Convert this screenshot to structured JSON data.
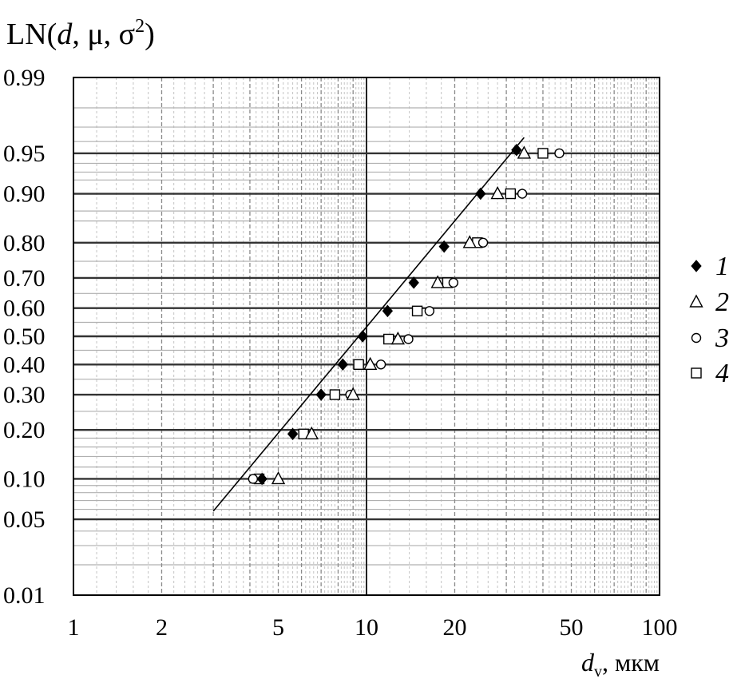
{
  "chart_data": {
    "type": "scatter",
    "title": "",
    "ylabel": {
      "prefix": "LN(",
      "var": "d",
      "mid": ", μ, σ",
      "sup": "2",
      "suffix": ")"
    },
    "xlabel": {
      "var": "d",
      "sub": "v",
      "suffix": ", мкм"
    },
    "x_scale": "log",
    "y_scale": "probability",
    "xlim": [
      1,
      100
    ],
    "ylim": [
      0.01,
      0.99
    ],
    "x_ticks": [
      {
        "value": 1,
        "label": "1"
      },
      {
        "value": 2,
        "label": "2"
      },
      {
        "value": 5,
        "label": "5"
      },
      {
        "value": 10,
        "label": "10"
      },
      {
        "value": 20,
        "label": "20"
      },
      {
        "value": 50,
        "label": "50"
      },
      {
        "value": 100,
        "label": "100"
      }
    ],
    "y_ticks": [
      {
        "value": 0.01,
        "label": "0.01"
      },
      {
        "value": 0.05,
        "label": "0.05"
      },
      {
        "value": 0.1,
        "label": "0.10"
      },
      {
        "value": 0.2,
        "label": "0.20"
      },
      {
        "value": 0.3,
        "label": "0.30"
      },
      {
        "value": 0.4,
        "label": "0.40"
      },
      {
        "value": 0.5,
        "label": "0.50"
      },
      {
        "value": 0.6,
        "label": "0.60"
      },
      {
        "value": 0.7,
        "label": "0.70"
      },
      {
        "value": 0.8,
        "label": "0.80"
      },
      {
        "value": 0.9,
        "label": "0.90"
      },
      {
        "value": 0.95,
        "label": "0.95"
      },
      {
        "value": 0.99,
        "label": "0.99"
      }
    ],
    "grid": true,
    "legend_position": "right",
    "series": [
      {
        "name": "1",
        "marker": "diamond-filled",
        "points": [
          {
            "x": 4.4,
            "y": 0.1
          },
          {
            "x": 5.6,
            "y": 0.19
          },
          {
            "x": 7.0,
            "y": 0.3
          },
          {
            "x": 8.3,
            "y": 0.4
          },
          {
            "x": 9.7,
            "y": 0.5
          },
          {
            "x": 11.8,
            "y": 0.59
          },
          {
            "x": 14.5,
            "y": 0.685
          },
          {
            "x": 18.4,
            "y": 0.79
          },
          {
            "x": 24.5,
            "y": 0.9
          },
          {
            "x": 32.5,
            "y": 0.953
          }
        ]
      },
      {
        "name": "2",
        "marker": "triangle-open",
        "points": [
          {
            "x": 5.0,
            "y": 0.1
          },
          {
            "x": 6.5,
            "y": 0.19
          },
          {
            "x": 9.0,
            "y": 0.3
          },
          {
            "x": 10.3,
            "y": 0.4
          },
          {
            "x": 12.8,
            "y": 0.49
          },
          {
            "x": 17.5,
            "y": 0.685
          },
          {
            "x": 22.5,
            "y": 0.8
          },
          {
            "x": 28.0,
            "y": 0.9
          },
          {
            "x": 34.5,
            "y": 0.95
          }
        ]
      },
      {
        "name": "3",
        "marker": "circle-open",
        "points": [
          {
            "x": 4.1,
            "y": 0.1
          },
          {
            "x": 8.8,
            "y": 0.3
          },
          {
            "x": 11.2,
            "y": 0.4
          },
          {
            "x": 13.9,
            "y": 0.49
          },
          {
            "x": 16.4,
            "y": 0.59
          },
          {
            "x": 19.8,
            "y": 0.685
          },
          {
            "x": 25.0,
            "y": 0.8
          },
          {
            "x": 34.0,
            "y": 0.9
          },
          {
            "x": 45.5,
            "y": 0.95
          }
        ]
      },
      {
        "name": "4",
        "marker": "square-open",
        "points": [
          {
            "x": 4.3,
            "y": 0.1
          },
          {
            "x": 6.1,
            "y": 0.19
          },
          {
            "x": 7.8,
            "y": 0.3
          },
          {
            "x": 9.4,
            "y": 0.4
          },
          {
            "x": 11.9,
            "y": 0.49
          },
          {
            "x": 14.9,
            "y": 0.59
          },
          {
            "x": 18.9,
            "y": 0.685
          },
          {
            "x": 23.9,
            "y": 0.8
          },
          {
            "x": 31.0,
            "y": 0.9
          },
          {
            "x": 40.0,
            "y": 0.95
          }
        ]
      }
    ],
    "fit_line": {
      "points": [
        {
          "x": 3.0,
          "y": 0.058
        },
        {
          "x": 34.5,
          "y": 0.963
        }
      ]
    }
  }
}
